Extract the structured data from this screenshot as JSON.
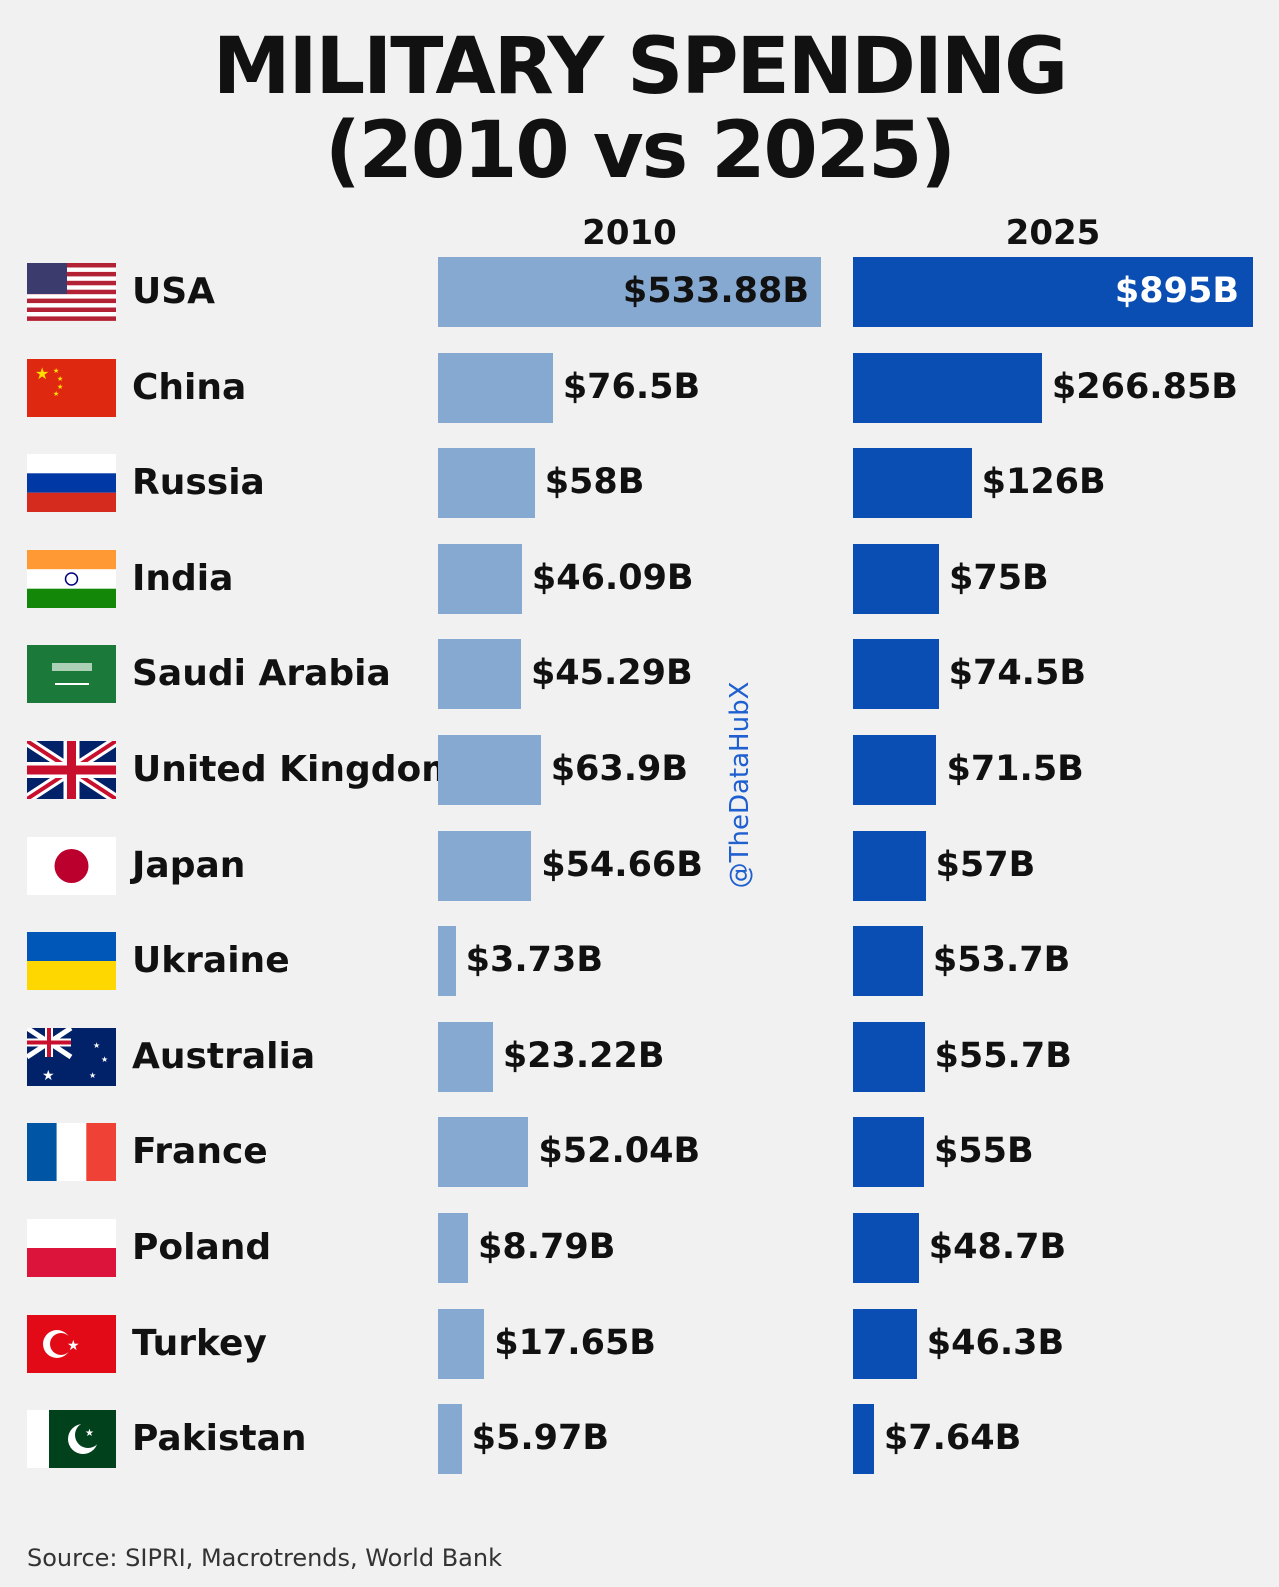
{
  "chart_data": {
    "type": "bar",
    "orientation": "horizontal",
    "title": "MILITARY SPENDING",
    "subtitle": "(2010 vs 2025)",
    "categories": [
      "USA",
      "China",
      "Russia",
      "India",
      "Saudi Arabia",
      "United Kingdom",
      "Japan",
      "Ukraine",
      "Australia",
      "France",
      "Poland",
      "Turkey",
      "Pakistan"
    ],
    "series": [
      {
        "name": "2010",
        "color": "#86a9d2",
        "values": [
          533.88,
          76.5,
          58,
          46.09,
          45.29,
          63.9,
          54.66,
          3.73,
          23.22,
          52.04,
          8.79,
          17.65,
          5.97
        ],
        "labels": [
          "$533.88B",
          "$76.5B",
          "$58B",
          "$46.09B",
          "$45.29B",
          "$63.9B",
          "$54.66B",
          "$3.73B",
          "$23.22B",
          "$52.04B",
          "$8.79B",
          "$17.65B",
          "$5.97B"
        ]
      },
      {
        "name": "2025",
        "color": "#0b4eb3",
        "values": [
          895,
          266.85,
          126,
          75,
          74.5,
          71.5,
          57,
          53.7,
          55.7,
          55,
          48.7,
          46.3,
          7.64
        ],
        "labels": [
          "$895B",
          "$266.85B",
          "$126B",
          "$75B",
          "$74.5B",
          "$71.5B",
          "$57B",
          "$53.7B",
          "$55.7B",
          "$55B",
          "$48.7B",
          "$46.3B",
          "$7.64B"
        ]
      }
    ],
    "unit": "USD billions",
    "grid": false,
    "flags": [
      "us",
      "cn",
      "ru",
      "in",
      "sa",
      "gb",
      "jp",
      "ua",
      "au",
      "fr",
      "pl",
      "tr",
      "pk"
    ]
  },
  "watermark": "@TheDataHubX",
  "source": "Source: SIPRI, Macrotrends, World Bank"
}
